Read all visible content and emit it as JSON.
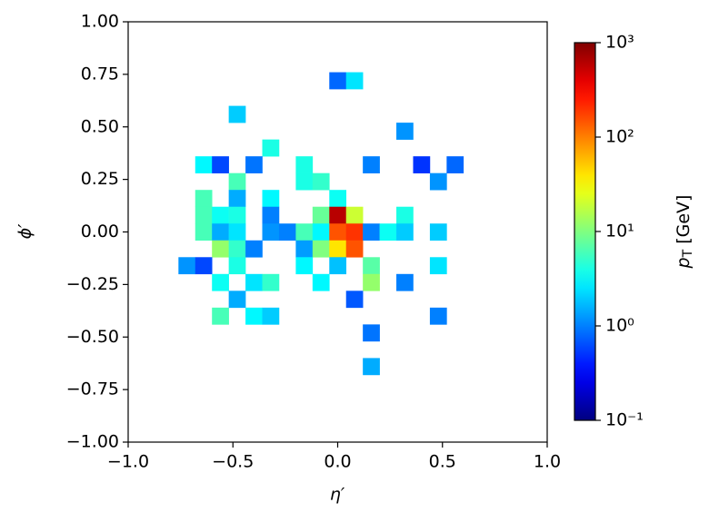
{
  "chart_data": {
    "type": "heatmap",
    "xlabel": "η′",
    "ylabel": "ϕ′",
    "xlim": [
      -1,
      1
    ],
    "ylim": [
      -1,
      1
    ],
    "xticks": [
      {
        "value": -1,
        "label": "−1.0"
      },
      {
        "value": -0.5,
        "label": "−0.5"
      },
      {
        "value": 0,
        "label": "0.0"
      },
      {
        "value": 0.5,
        "label": "0.5"
      },
      {
        "value": 1,
        "label": "1.0"
      }
    ],
    "yticks": [
      {
        "value": 1,
        "label": "1.00"
      },
      {
        "value": 0.75,
        "label": "0.75"
      },
      {
        "value": 0.5,
        "label": "0.50"
      },
      {
        "value": 0.25,
        "label": "0.25"
      },
      {
        "value": 0,
        "label": "0.00"
      },
      {
        "value": -0.25,
        "label": "−0.25"
      },
      {
        "value": -0.5,
        "label": "−0.50"
      },
      {
        "value": -0.75,
        "label": "−0.75"
      },
      {
        "value": -1,
        "label": "−1.00"
      }
    ],
    "colormap": "jet",
    "color_scale": "log",
    "colorbar": {
      "label": [
        "p",
        "T",
        " [GeV]"
      ],
      "lim": [
        0.1,
        1000
      ],
      "ticks": [
        {
          "value": 0.1,
          "label": "10⁻¹"
        },
        {
          "value": 1,
          "label": "10⁰"
        },
        {
          "value": 10,
          "label": "10¹"
        },
        {
          "value": 100,
          "label": "10²"
        },
        {
          "value": 1000,
          "label": "10³"
        }
      ]
    },
    "x": [
      0,
      0.08,
      -0.48,
      0.32,
      -0.32,
      -0.64,
      -0.56,
      -0.4,
      -0.16,
      0.16,
      0.4,
      0.56,
      -0.48,
      -0.16,
      -0.08,
      0.48,
      -0.64,
      -0.48,
      -0.32,
      0,
      -0.64,
      -0.56,
      -0.48,
      -0.32,
      -0.08,
      0,
      0.08,
      0.32,
      -0.64,
      -0.56,
      -0.48,
      -0.32,
      -0.24,
      -0.16,
      -0.08,
      0,
      0.08,
      0.16,
      0.24,
      0.32,
      0.48,
      -0.56,
      -0.48,
      -0.4,
      -0.16,
      -0.08,
      0,
      0.08,
      -0.72,
      -0.64,
      -0.48,
      -0.16,
      0,
      0.16,
      0.48,
      -0.56,
      -0.4,
      -0.32,
      -0.08,
      0.16,
      0.32,
      -0.48,
      0.08,
      -0.56,
      -0.4,
      -0.32,
      0.48,
      0.16,
      0.16
    ],
    "y": [
      0.72,
      0.72,
      0.56,
      0.48,
      0.4,
      0.32,
      0.32,
      0.32,
      0.32,
      0.32,
      0.32,
      0.32,
      0.24,
      0.24,
      0.24,
      0.24,
      0.16,
      0.16,
      0.16,
      0.16,
      0.08,
      0.08,
      0.08,
      0.08,
      0.08,
      0.08,
      0.08,
      0.08,
      0,
      0,
      0,
      0,
      0,
      0,
      0,
      0,
      0,
      0,
      0,
      0,
      0,
      -0.08,
      -0.08,
      -0.08,
      -0.08,
      -0.08,
      -0.08,
      -0.08,
      -0.16,
      -0.16,
      -0.16,
      -0.16,
      -0.16,
      -0.16,
      -0.16,
      -0.24,
      -0.24,
      -0.24,
      -0.24,
      -0.24,
      -0.24,
      -0.32,
      -0.32,
      -0.4,
      -0.4,
      -0.4,
      -0.4,
      -0.48,
      -0.64
    ],
    "values": [
      0.8,
      2.5,
      2,
      1.2,
      4,
      3,
      0.6,
      0.9,
      4,
      1,
      0.5,
      0.8,
      6,
      4,
      5,
      1.2,
      6,
      1.5,
      3,
      3.5,
      6,
      3.5,
      4,
      1,
      8,
      600,
      20,
      4,
      6,
      1.5,
      2.5,
      1.2,
      1,
      6,
      3,
      150,
      200,
      1,
      3.5,
      2,
      2,
      12,
      5,
      1,
      1.3,
      10,
      40,
      150,
      1.2,
      0.6,
      4,
      3,
      1.8,
      7,
      2.5,
      3.5,
      2.5,
      5,
      3,
      12,
      1,
      1.5,
      0.7,
      6,
      3,
      2,
      1,
      0.9,
      1.5
    ]
  }
}
